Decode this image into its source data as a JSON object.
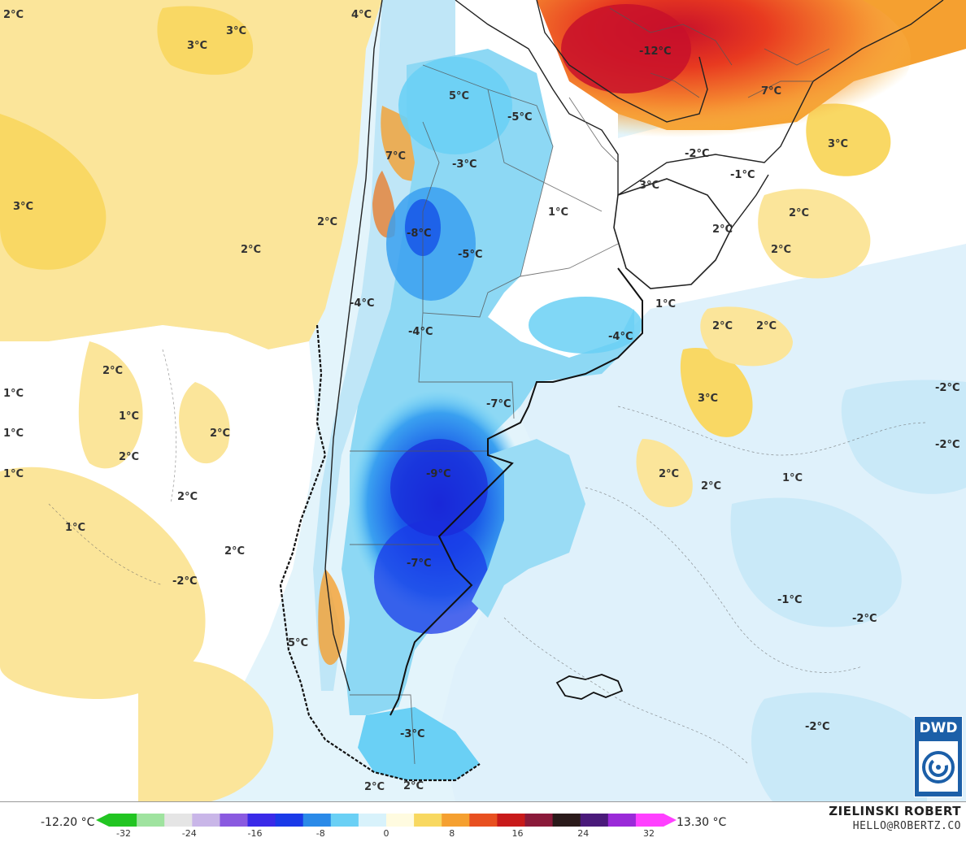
{
  "map": {
    "labels": [
      {
        "text": "2°C",
        "sign": "pos"
      },
      {
        "text": "4°C",
        "sign": "pos"
      },
      {
        "text": "3°C",
        "sign": "pos"
      },
      {
        "text": "3°C",
        "sign": "pos"
      },
      {
        "text": "3°C",
        "sign": "pos"
      },
      {
        "text": "2°C",
        "sign": "pos"
      },
      {
        "text": "2°C",
        "sign": "pos"
      },
      {
        "text": "5°C",
        "sign": "pos"
      },
      {
        "text": "7°C",
        "sign": "pos"
      },
      {
        "text": "-3°C",
        "sign": "neg"
      },
      {
        "text": "-8°C",
        "sign": "neg"
      },
      {
        "text": "-5°C",
        "sign": "neg"
      },
      {
        "text": "-5°C",
        "sign": "neg"
      },
      {
        "text": "-4°C",
        "sign": "neg"
      },
      {
        "text": "-4°C",
        "sign": "neg"
      },
      {
        "text": "-4°C",
        "sign": "neg"
      },
      {
        "text": "-7°C",
        "sign": "neg"
      },
      {
        "text": "-9°C",
        "sign": "neg"
      },
      {
        "text": "-7°C",
        "sign": "neg"
      },
      {
        "text": "-3°C",
        "sign": "neg"
      },
      {
        "text": "5°C",
        "sign": "pos"
      },
      {
        "text": "2°C",
        "sign": "pos"
      },
      {
        "text": "2°C",
        "sign": "pos"
      },
      {
        "text": "-12°C",
        "sign": "neg"
      },
      {
        "text": "7°C",
        "sign": "pos"
      },
      {
        "text": "3°C",
        "sign": "pos"
      },
      {
        "text": "-2°C",
        "sign": "neg"
      },
      {
        "text": "-1°C",
        "sign": "neg"
      },
      {
        "text": "3°C",
        "sign": "pos"
      },
      {
        "text": "1°C",
        "sign": "pos"
      },
      {
        "text": "2°C",
        "sign": "pos"
      },
      {
        "text": "2°C",
        "sign": "pos"
      },
      {
        "text": "2°C",
        "sign": "pos"
      },
      {
        "text": "1°C",
        "sign": "pos"
      },
      {
        "text": "2°C",
        "sign": "pos"
      },
      {
        "text": "2°C",
        "sign": "pos"
      },
      {
        "text": "3°C",
        "sign": "pos"
      },
      {
        "text": "2°C",
        "sign": "pos"
      },
      {
        "text": "1°C",
        "sign": "pos"
      },
      {
        "text": "2°C",
        "sign": "pos"
      },
      {
        "text": "1°C",
        "sign": "pos"
      },
      {
        "text": "2°C",
        "sign": "pos"
      },
      {
        "text": "1°C",
        "sign": "pos"
      },
      {
        "text": "1°C",
        "sign": "pos"
      },
      {
        "text": "1°C",
        "sign": "pos"
      },
      {
        "text": "2°C",
        "sign": "pos"
      },
      {
        "text": "2°C",
        "sign": "pos"
      },
      {
        "text": "2°C",
        "sign": "pos"
      },
      {
        "text": "1°C",
        "sign": "pos"
      },
      {
        "text": "2°C",
        "sign": "pos"
      },
      {
        "text": "-2°C",
        "sign": "neg"
      },
      {
        "text": "-1°C",
        "sign": "neg"
      },
      {
        "text": "-2°C",
        "sign": "neg"
      },
      {
        "text": "-2°C",
        "sign": "neg"
      },
      {
        "text": "-2°C",
        "sign": "neg"
      },
      {
        "text": "-2°C",
        "sign": "neg"
      },
      {
        "text": "-2°C",
        "sign": "neg"
      }
    ]
  },
  "colorbar": {
    "min_label": "-12.20 °C",
    "max_label": "13.30 °C",
    "ticks": [
      "-32",
      "-24",
      "-16",
      "-8",
      "0",
      "8",
      "16",
      "24",
      "32"
    ],
    "colors": [
      "#22c522",
      "#9fe39f",
      "#e5e5e5",
      "#c9b6e8",
      "#8a5ae0",
      "#3a2ae8",
      "#1a3ae8",
      "#2a8ae8",
      "#6ad0f5",
      "#d8f2fb",
      "#fffbe0",
      "#f8d860",
      "#f5a030",
      "#e85020",
      "#c81a1a",
      "#8a1a3a",
      "#2a1a1a",
      "#4a1a7a",
      "#9a2ad8",
      "#ff40ff"
    ]
  },
  "credit": {
    "author": "ZIELINSKI ROBERT",
    "email": "HELLO@ROBERTZ.CO"
  },
  "logo": {
    "text": "DWD"
  }
}
